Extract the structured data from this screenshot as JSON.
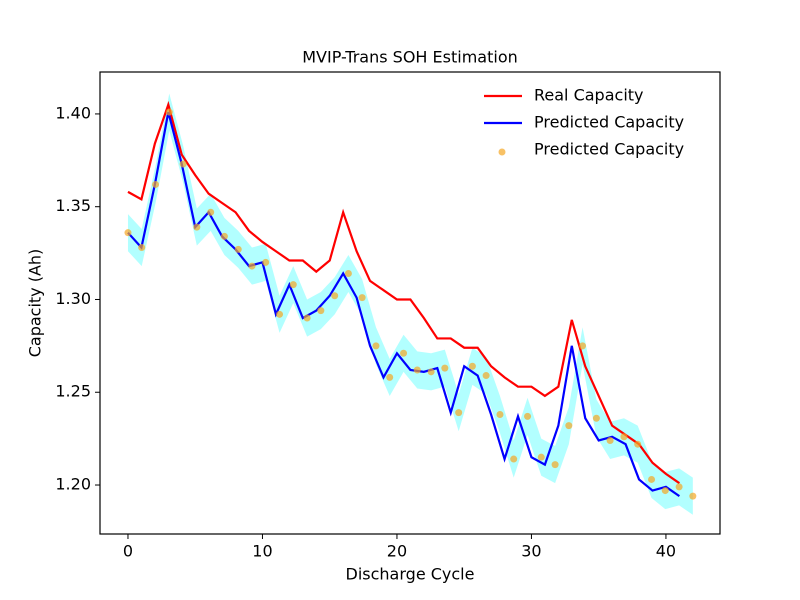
{
  "chart_data": {
    "type": "line",
    "title": "MVIP-Trans SOH Estimation",
    "x_label": "Discharge Cycle",
    "y_label": "Capacity (Ah)",
    "x": [
      0,
      1,
      2,
      3,
      4,
      5,
      6,
      7,
      8,
      9,
      10,
      11,
      12,
      13,
      14,
      15,
      16,
      17,
      18,
      19,
      20,
      21,
      22,
      23,
      24,
      25,
      26,
      27,
      28,
      29,
      30,
      31,
      32,
      33,
      34,
      35,
      36,
      37,
      38,
      39,
      40,
      41
    ],
    "series": [
      {
        "name": "Real Capacity",
        "color": "#ff0000",
        "values": [
          1.358,
          1.354,
          1.384,
          1.405,
          1.378,
          1.367,
          1.357,
          1.352,
          1.347,
          1.337,
          1.331,
          1.326,
          1.321,
          1.321,
          1.315,
          1.321,
          1.347,
          1.326,
          1.31,
          1.305,
          1.3,
          1.3,
          1.29,
          1.279,
          1.279,
          1.274,
          1.274,
          1.264,
          1.258,
          1.253,
          1.253,
          1.248,
          1.253,
          1.289,
          1.264,
          1.248,
          1.232,
          1.227,
          1.222,
          1.212,
          1.206,
          1.201
        ]
      },
      {
        "name": "Predicted Capacity",
        "color": "#0000ff",
        "values": [
          1.336,
          1.328,
          1.362,
          1.401,
          1.373,
          1.339,
          1.347,
          1.334,
          1.327,
          1.318,
          1.32,
          1.292,
          1.308,
          1.29,
          1.294,
          1.302,
          1.314,
          1.301,
          1.275,
          1.258,
          1.271,
          1.262,
          1.261,
          1.263,
          1.239,
          1.264,
          1.259,
          1.238,
          1.214,
          1.237,
          1.215,
          1.211,
          1.232,
          1.275,
          1.236,
          1.224,
          1.226,
          1.222,
          1.203,
          1.197,
          1.199,
          1.194
        ]
      },
      {
        "name": "Predicted Capacity",
        "color": "#f5a623",
        "kind": "scatter",
        "x": [
          0,
          1.02,
          2.05,
          3.07,
          4.1,
          5.12,
          6.15,
          7.17,
          8.2,
          9.22,
          10.24,
          11.27,
          12.29,
          13.32,
          14.34,
          15.37,
          16.39,
          17.41,
          18.44,
          19.46,
          20.49,
          21.51,
          22.54,
          23.56,
          24.59,
          25.61,
          26.63,
          27.66,
          28.68,
          29.71,
          30.73,
          31.76,
          32.78,
          33.8,
          34.83,
          35.85,
          36.88,
          37.9,
          38.93,
          39.95,
          40.98,
          42.0
        ],
        "values": [
          1.336,
          1.328,
          1.362,
          1.401,
          1.373,
          1.339,
          1.347,
          1.334,
          1.327,
          1.318,
          1.32,
          1.292,
          1.308,
          1.29,
          1.294,
          1.302,
          1.314,
          1.301,
          1.275,
          1.258,
          1.271,
          1.262,
          1.261,
          1.263,
          1.239,
          1.264,
          1.259,
          1.238,
          1.214,
          1.237,
          1.215,
          1.211,
          1.232,
          1.275,
          1.236,
          1.224,
          1.226,
          1.222,
          1.203,
          1.197,
          1.199,
          1.194
        ]
      }
    ],
    "band": {
      "color": "#00ffff",
      "x": [
        0,
        1.02,
        2.05,
        3.07,
        4.1,
        5.12,
        6.15,
        7.17,
        8.2,
        9.22,
        10.24,
        11.27,
        12.29,
        13.32,
        14.34,
        15.37,
        16.39,
        17.41,
        18.44,
        19.46,
        20.49,
        21.51,
        22.54,
        23.56,
        24.59,
        25.61,
        26.63,
        27.66,
        28.68,
        29.71,
        30.73,
        31.76,
        32.78,
        33.8,
        34.83,
        35.85,
        36.88,
        37.9,
        38.93,
        39.95,
        40.98,
        42.0
      ],
      "lower": [
        1.326,
        1.318,
        1.352,
        1.391,
        1.363,
        1.329,
        1.337,
        1.324,
        1.317,
        1.308,
        1.31,
        1.282,
        1.298,
        1.28,
        1.284,
        1.292,
        1.304,
        1.291,
        1.265,
        1.248,
        1.261,
        1.252,
        1.251,
        1.253,
        1.229,
        1.254,
        1.249,
        1.228,
        1.204,
        1.227,
        1.205,
        1.201,
        1.222,
        1.265,
        1.226,
        1.214,
        1.216,
        1.212,
        1.193,
        1.187,
        1.189,
        1.184
      ],
      "upper": [
        1.346,
        1.338,
        1.372,
        1.411,
        1.383,
        1.349,
        1.357,
        1.344,
        1.337,
        1.328,
        1.33,
        1.302,
        1.318,
        1.3,
        1.304,
        1.312,
        1.324,
        1.311,
        1.285,
        1.268,
        1.281,
        1.272,
        1.271,
        1.273,
        1.249,
        1.274,
        1.269,
        1.248,
        1.224,
        1.247,
        1.225,
        1.221,
        1.242,
        1.285,
        1.246,
        1.234,
        1.236,
        1.232,
        1.213,
        1.207,
        1.209,
        1.204
      ]
    },
    "xlim": [
      -2.08,
      44.02
    ],
    "ylim": [
      1.1736,
      1.4226
    ],
    "xticks": [
      0,
      10,
      20,
      30,
      40
    ],
    "yticks": [
      {
        "value": 1.2,
        "label": "1.20"
      },
      {
        "value": 1.25,
        "label": "1.25"
      },
      {
        "value": 1.3,
        "label": "1.30"
      },
      {
        "value": 1.35,
        "label": "1.35"
      },
      {
        "value": 1.4,
        "label": "1.40"
      }
    ],
    "legend": "upper right"
  }
}
